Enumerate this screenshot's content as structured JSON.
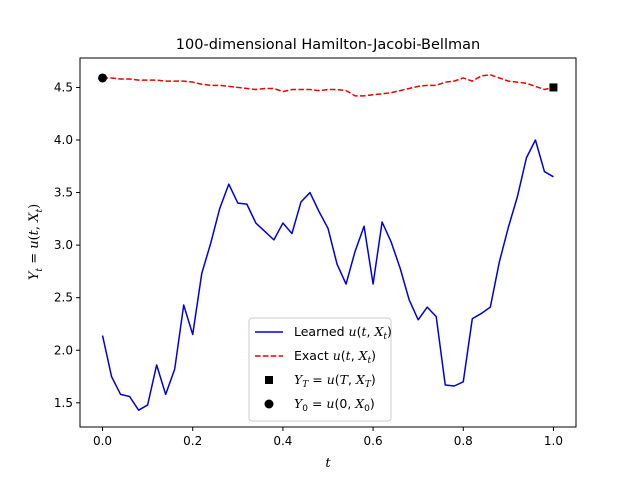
{
  "chart_data": {
    "type": "line",
    "title": "100-dimensional Hamilton-Jacobi-Bellman",
    "xlabel": "t",
    "ylabel": "Y_t = u(t, X_t)",
    "xlim": [
      -0.05,
      1.05
    ],
    "ylim": [
      1.27,
      4.78
    ],
    "xticks": [
      0.0,
      0.2,
      0.4,
      0.6,
      0.8,
      1.0
    ],
    "xtick_labels": [
      "0.0",
      "0.2",
      "0.4",
      "0.6",
      "0.8",
      "1.0"
    ],
    "yticks": [
      1.5,
      2.0,
      2.5,
      3.0,
      3.5,
      4.0,
      4.5
    ],
    "ytick_labels": [
      "1.5",
      "2.0",
      "2.5",
      "3.0",
      "3.5",
      "4.0",
      "4.5"
    ],
    "grid": false,
    "legend_position": "lower-center",
    "series": [
      {
        "name": "Learned u(t,X_t)",
        "style": "solid",
        "color": "#0000dd",
        "x": [
          0.0,
          0.02,
          0.04,
          0.06,
          0.08,
          0.1,
          0.12,
          0.14,
          0.16,
          0.18,
          0.2,
          0.22,
          0.24,
          0.26,
          0.28,
          0.3,
          0.32,
          0.34,
          0.36,
          0.38,
          0.4,
          0.42,
          0.44,
          0.46,
          0.48,
          0.5,
          0.52,
          0.54,
          0.56,
          0.58,
          0.6,
          0.62,
          0.64,
          0.66,
          0.68,
          0.7,
          0.72,
          0.74,
          0.76,
          0.78,
          0.8,
          0.82,
          0.84,
          0.86,
          0.88,
          0.9,
          0.92,
          0.94,
          0.96,
          0.98,
          1.0
        ],
        "y": [
          2.14,
          1.75,
          1.58,
          1.56,
          1.43,
          1.48,
          1.86,
          1.58,
          1.82,
          2.43,
          2.15,
          2.73,
          3.02,
          3.35,
          3.58,
          3.4,
          3.39,
          3.21,
          3.13,
          3.05,
          3.21,
          3.11,
          3.41,
          3.5,
          3.32,
          3.16,
          2.82,
          2.63,
          2.94,
          3.18,
          2.63,
          3.22,
          3.03,
          2.78,
          2.48,
          2.29,
          2.41,
          2.32,
          1.67,
          1.66,
          1.7,
          2.3,
          2.35,
          2.41,
          2.84,
          3.17,
          3.46,
          3.83,
          4.0,
          3.7,
          3.65
        ]
      },
      {
        "name": "Exact u(t,X_t)",
        "style": "dashed",
        "color": "#ee0000",
        "x": [
          0.0,
          0.02,
          0.04,
          0.06,
          0.08,
          0.1,
          0.12,
          0.14,
          0.16,
          0.18,
          0.2,
          0.22,
          0.24,
          0.26,
          0.28,
          0.3,
          0.32,
          0.34,
          0.36,
          0.38,
          0.4,
          0.42,
          0.44,
          0.46,
          0.48,
          0.5,
          0.52,
          0.54,
          0.56,
          0.58,
          0.6,
          0.62,
          0.64,
          0.66,
          0.68,
          0.7,
          0.72,
          0.74,
          0.76,
          0.78,
          0.8,
          0.82,
          0.84,
          0.86,
          0.88,
          0.9,
          0.92,
          0.94,
          0.96,
          0.98,
          1.0
        ],
        "y": [
          4.59,
          4.59,
          4.58,
          4.58,
          4.57,
          4.57,
          4.57,
          4.56,
          4.56,
          4.56,
          4.55,
          4.53,
          4.52,
          4.52,
          4.51,
          4.5,
          4.49,
          4.48,
          4.49,
          4.49,
          4.46,
          4.48,
          4.48,
          4.48,
          4.47,
          4.48,
          4.48,
          4.47,
          4.42,
          4.42,
          4.43,
          4.44,
          4.45,
          4.47,
          4.49,
          4.51,
          4.52,
          4.52,
          4.55,
          4.56,
          4.59,
          4.56,
          4.61,
          4.62,
          4.59,
          4.56,
          4.55,
          4.54,
          4.51,
          4.48,
          4.5
        ]
      }
    ],
    "markers": [
      {
        "name": "Y_T = u(T, X_T)",
        "shape": "square",
        "color": "#000000",
        "x": 1.0,
        "y": 4.5
      },
      {
        "name": "Y_0 = u(0, X_0)",
        "shape": "circle",
        "color": "#000000",
        "x": 0.0,
        "y": 4.59
      }
    ],
    "legend": [
      {
        "label_prefix": "Learned ",
        "label_math": "u(t,X_t)"
      },
      {
        "label_prefix": "Exact ",
        "label_math": "u(t,X_t)"
      },
      {
        "label_prefix": "",
        "label_math": "Y_T = u(T,X_T)"
      },
      {
        "label_prefix": "",
        "label_math": "Y_0 = u(0,X_0)"
      }
    ]
  }
}
